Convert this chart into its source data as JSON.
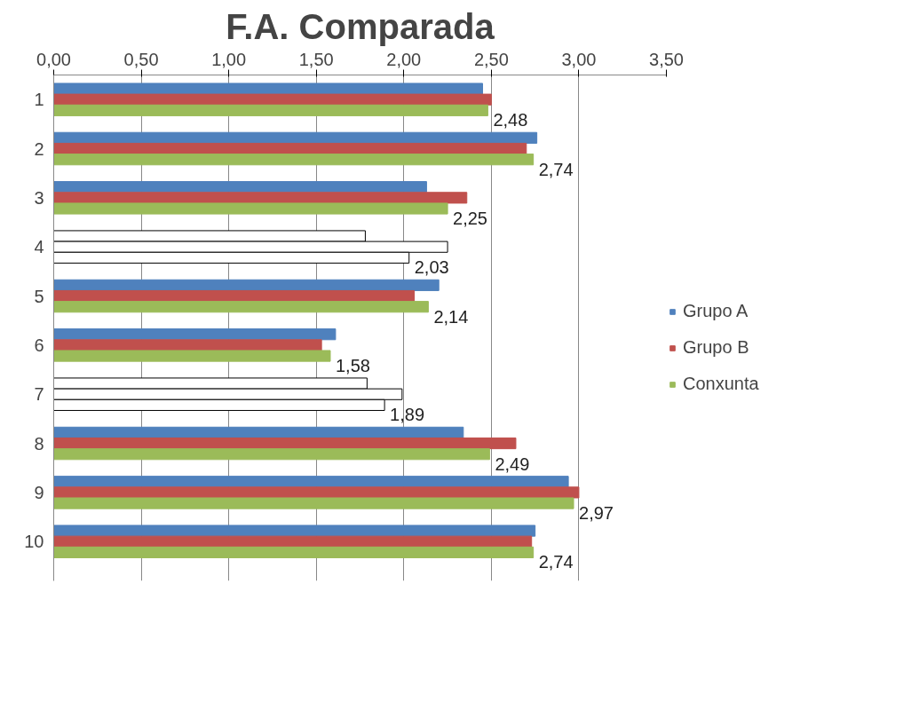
{
  "chart_data": {
    "type": "bar",
    "orientation": "horizontal",
    "title": "F.A. Comparada",
    "categories": [
      "1",
      "2",
      "3",
      "4",
      "5",
      "6",
      "7",
      "8",
      "9",
      "10"
    ],
    "series": [
      {
        "name": "Grupo A",
        "color": "#4f81bd",
        "colors": [
          "#4f81bd",
          "#4f81bd",
          "#4f81bd",
          "#ffffff",
          "#4f81bd",
          "#4f81bd",
          "#ffffff",
          "#4f81bd",
          "#4f81bd",
          "#4f81bd"
        ],
        "values": [
          2.45,
          2.76,
          2.13,
          1.78,
          2.2,
          1.61,
          1.79,
          2.34,
          2.94,
          2.75
        ]
      },
      {
        "name": "Grupo B",
        "color": "#c0504d",
        "colors": [
          "#c0504d",
          "#c0504d",
          "#c0504d",
          "#ffffff",
          "#c0504d",
          "#c0504d",
          "#ffffff",
          "#c0504d",
          "#c0504d",
          "#c0504d"
        ],
        "values": [
          2.5,
          2.7,
          2.36,
          2.25,
          2.06,
          1.53,
          1.99,
          2.64,
          3.0,
          2.73
        ]
      },
      {
        "name": "Conxunta",
        "color": "#9bbb59",
        "colors": [
          "#9bbb59",
          "#9bbb59",
          "#9bbb59",
          "#ffffff",
          "#9bbb59",
          "#9bbb59",
          "#ffffff",
          "#9bbb59",
          "#9bbb59",
          "#9bbb59"
        ],
        "values": [
          2.48,
          2.74,
          2.25,
          2.03,
          2.14,
          1.58,
          1.89,
          2.49,
          2.97,
          2.74
        ],
        "value_labels": [
          "2,48",
          "2,74",
          "2,25",
          "2,03",
          "2,14",
          "1,58",
          "1,89",
          "2,49",
          "2,97",
          "2,74"
        ]
      }
    ],
    "xlim": [
      0,
      3.5
    ],
    "xticks": [
      {
        "value": 0,
        "label": "0,00"
      },
      {
        "value": 0.5,
        "label": "0,50"
      },
      {
        "value": 1,
        "label": "1,00"
      },
      {
        "value": 1.5,
        "label": "1,50"
      },
      {
        "value": 2,
        "label": "2,00"
      },
      {
        "value": 2.5,
        "label": "2,50"
      },
      {
        "value": 3,
        "label": "3,00"
      },
      {
        "value": 3.5,
        "label": "3,50"
      }
    ],
    "grid": "x",
    "legend": "right"
  }
}
